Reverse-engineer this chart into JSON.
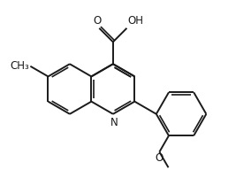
{
  "background_color": "#ffffff",
  "line_color": "#1a1a1a",
  "line_width": 1.4,
  "font_size": 8.5,
  "figsize": [
    2.84,
    2.18
  ],
  "dpi": 100,
  "BL": 1.0,
  "xlim": [
    -4.5,
    5.5
  ],
  "ylim": [
    -3.8,
    3.2
  ]
}
